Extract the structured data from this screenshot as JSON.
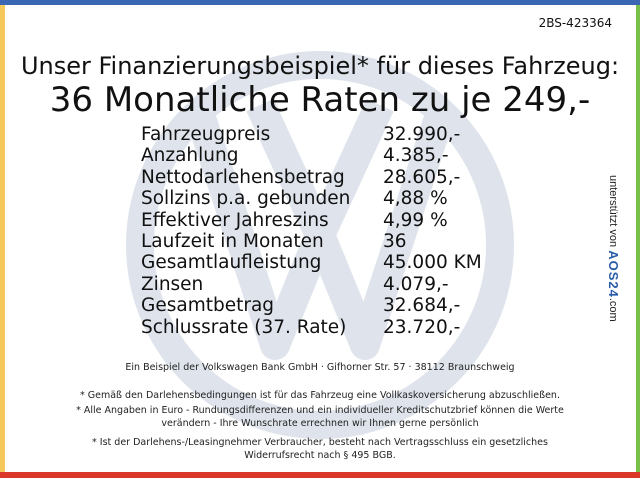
{
  "colors": {
    "top": "#3b66b4",
    "left": "#f7c85a",
    "right": "#79c04a",
    "bottom": "#d8372a",
    "watermark": "#dfe4ec"
  },
  "watermark_icon": "vw-logo-icon",
  "reference": "2BS-423364",
  "title_line1": "Unser Finanzierungsbeispiel* für dieses Fahrzeug:",
  "title_line2": "36 Monatliche Raten zu je 249,-",
  "rows": [
    {
      "label": "Fahrzeugpreis",
      "value": "32.990,-"
    },
    {
      "label": "Anzahlung",
      "value": "4.385,-"
    },
    {
      "label": "Nettodarlehensbetrag",
      "value": "28.605,-"
    },
    {
      "label": "Sollzins p.a. gebunden",
      "value": "4,88 %"
    },
    {
      "label": "Effektiver Jahreszins",
      "value": "4,99 %"
    },
    {
      "label": "Laufzeit in Monaten",
      "value": "36"
    },
    {
      "label": "Gesamtlaufleistung",
      "value": "45.000 KM"
    },
    {
      "label": "Zinsen",
      "value": "4.079,-"
    },
    {
      "label": "Gesamtbetrag",
      "value": "32.684,-"
    },
    {
      "label": "Schlussrate (37. Rate)",
      "value": "23.720,-"
    }
  ],
  "side": {
    "prefix": "unterstützt von",
    "brand": "AOS24",
    "suffix": ".com"
  },
  "footer": {
    "bank": "Ein Beispiel der Volkswagen Bank GmbH · Gifhorner Str. 57 · 38112 Braunschweig",
    "note1": "* Gemäß den Darlehensbedingungen ist für das Fahrzeug eine Vollkaskoversicherung abzuschließen.",
    "note2a": "* Alle Angaben in Euro - Rundungsdifferenzen und ein individueller Kreditschutzbrief können die Werte",
    "note2b": "verändern - Ihre Wunschrate errechnen wir Ihnen gerne persönlich",
    "note3a": "* Ist der Darlehens-/Leasingnehmer Verbraucher, besteht nach Vertragsschluss ein gesetzliches",
    "note3b": "Widerrufsrecht nach § 495 BGB."
  }
}
